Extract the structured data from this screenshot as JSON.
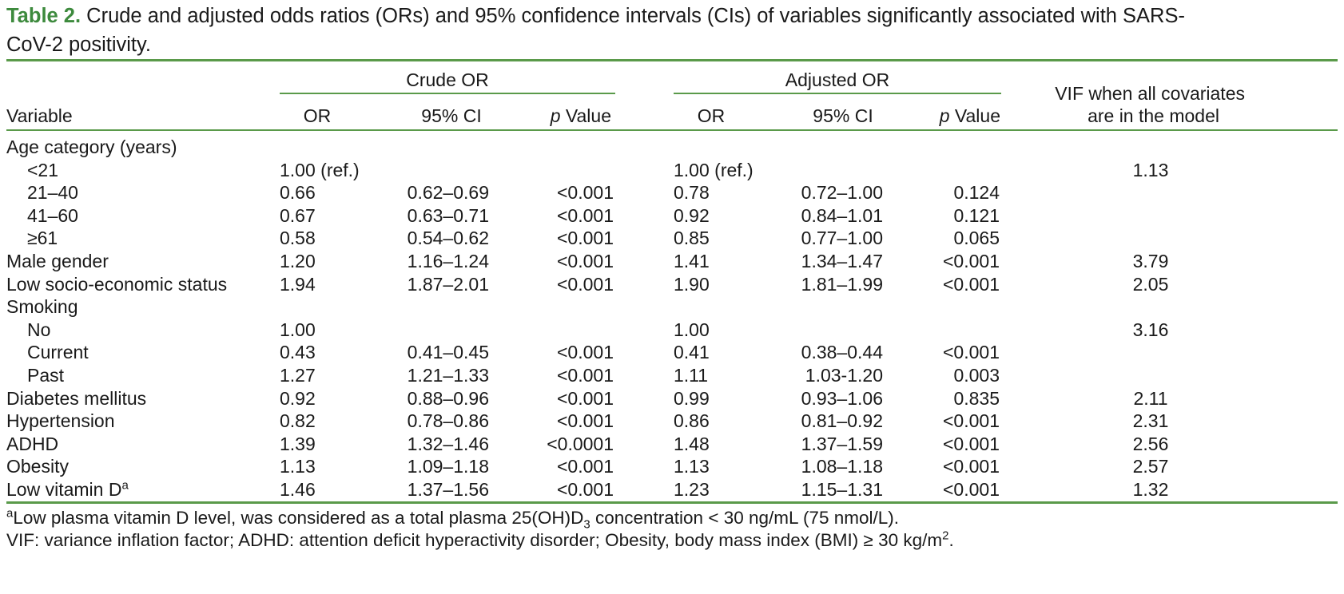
{
  "caption": {
    "label": "Table 2.",
    "text": "Crude and adjusted odds ratios (ORs) and 95% confidence intervals (CIs) of variables significantly associated with SARS-CoV-2 positivity.",
    "line1": "Crude and adjusted odds ratios (ORs) and 95% confidence intervals (CIs) of variables significantly associated with SARS-",
    "line2": "CoV-2 positivity."
  },
  "headers": {
    "crude_group": "Crude OR",
    "adjusted_group": "Adjusted OR",
    "variable": "Variable",
    "or": "OR",
    "ci": "95% CI",
    "p_italic": "p",
    "p_rest": " Value",
    "vif_line1": "VIF when all covariates",
    "vif_line2": "are in the model"
  },
  "rows": [
    {
      "variable": "Age category (years)",
      "indent": false,
      "crude_or": "",
      "crude_ci": "",
      "crude_p": "",
      "adj_or": "",
      "adj_ci": "",
      "adj_p": "",
      "vif": ""
    },
    {
      "variable": "<21",
      "indent": true,
      "crude_or": "1.00 (ref.)",
      "crude_ci": "",
      "crude_p": "",
      "adj_or": "1.00 (ref.)",
      "adj_ci": "",
      "adj_p": "",
      "vif": "1.13"
    },
    {
      "variable": "21–40",
      "indent": true,
      "crude_or": "0.66",
      "crude_ci": "0.62–0.69",
      "crude_p": "<0.001",
      "adj_or": "0.78",
      "adj_ci": "0.72–1.00",
      "adj_p": "0.124",
      "vif": ""
    },
    {
      "variable": "41–60",
      "indent": true,
      "crude_or": "0.67",
      "crude_ci": "0.63–0.71",
      "crude_p": "<0.001",
      "adj_or": "0.92",
      "adj_ci": "0.84–1.01",
      "adj_p": "0.121",
      "vif": ""
    },
    {
      "variable": "≥61",
      "indent": true,
      "crude_or": "0.58",
      "crude_ci": "0.54–0.62",
      "crude_p": "<0.001",
      "adj_or": "0.85",
      "adj_ci": "0.77–1.00",
      "adj_p": "0.065",
      "vif": ""
    },
    {
      "variable": "Male gender",
      "indent": false,
      "crude_or": "1.20",
      "crude_ci": "1.16–1.24",
      "crude_p": "<0.001",
      "adj_or": "1.41",
      "adj_ci": "1.34–1.47",
      "adj_p": "<0.001",
      "vif": "3.79"
    },
    {
      "variable": "Low socio-economic status",
      "indent": false,
      "crude_or": "1.94",
      "crude_ci": "1.87–2.01",
      "crude_p": "<0.001",
      "adj_or": "1.90",
      "adj_ci": "1.81–1.99",
      "adj_p": "<0.001",
      "vif": "2.05"
    },
    {
      "variable": "Smoking",
      "indent": false,
      "crude_or": "",
      "crude_ci": "",
      "crude_p": "",
      "adj_or": "",
      "adj_ci": "",
      "adj_p": "",
      "vif": ""
    },
    {
      "variable": "No",
      "indent": true,
      "crude_or": "1.00",
      "crude_ci": "",
      "crude_p": "",
      "adj_or": "1.00",
      "adj_ci": "",
      "adj_p": "",
      "vif": "3.16"
    },
    {
      "variable": "Current",
      "indent": true,
      "crude_or": "0.43",
      "crude_ci": "0.41–0.45",
      "crude_p": "<0.001",
      "adj_or": "0.41",
      "adj_ci": "0.38–0.44",
      "adj_p": "<0.001",
      "vif": ""
    },
    {
      "variable": "Past",
      "indent": true,
      "crude_or": "1.27",
      "crude_ci": "1.21–1.33",
      "crude_p": "<0.001",
      "adj_or": "1.11",
      "adj_ci": "1.03-1.20",
      "adj_p": "0.003",
      "vif": ""
    },
    {
      "variable": "Diabetes mellitus",
      "indent": false,
      "crude_or": "0.92",
      "crude_ci": "0.88–0.96",
      "crude_p": "<0.001",
      "adj_or": "0.99",
      "adj_ci": "0.93–1.06",
      "adj_p": "0.835",
      "vif": "2.11"
    },
    {
      "variable": "Hypertension",
      "indent": false,
      "crude_or": "0.82",
      "crude_ci": "0.78–0.86",
      "crude_p": "<0.001",
      "adj_or": "0.86",
      "adj_ci": "0.81–0.92",
      "adj_p": "<0.001",
      "vif": "2.31"
    },
    {
      "variable": "ADHD",
      "indent": false,
      "crude_or": "1.39",
      "crude_ci": "1.32–1.46",
      "crude_p": "<0.0001",
      "adj_or": "1.48",
      "adj_ci": "1.37–1.59",
      "adj_p": "<0.001",
      "vif": "2.56"
    },
    {
      "variable": "Obesity",
      "indent": false,
      "crude_or": "1.13",
      "crude_ci": "1.09–1.18",
      "crude_p": "<0.001",
      "adj_or": "1.13",
      "adj_ci": "1.08–1.18",
      "adj_p": "<0.001",
      "vif": "2.57"
    },
    {
      "variable": "Low vitamin D",
      "variable_sup": "a",
      "indent": false,
      "crude_or": "1.46",
      "crude_ci": "1.37–1.56",
      "crude_p": "<0.001",
      "adj_or": "1.23",
      "adj_ci": "1.15–1.31",
      "adj_p": "<0.001",
      "vif": "1.32"
    }
  ],
  "footnotes": {
    "note_a_sup": "a",
    "note_a_pre": "Low plasma vitamin D level, was considered as a total plasma 25(OH)D",
    "note_a_sub": "3",
    "note_a_post": " concentration < 30 ng/mL (75 nmol/L).",
    "abbrev_pre": "VIF: variance inflation factor; ADHD: attention deficit hyperactivity disorder; Obesity, body mass index (BMI) ≥ 30 kg/m",
    "abbrev_sup": "2",
    "abbrev_post": "."
  },
  "colors": {
    "accent": "#3d8a3d",
    "rule": "#5a9a4a",
    "text": "#1a1a1a"
  }
}
